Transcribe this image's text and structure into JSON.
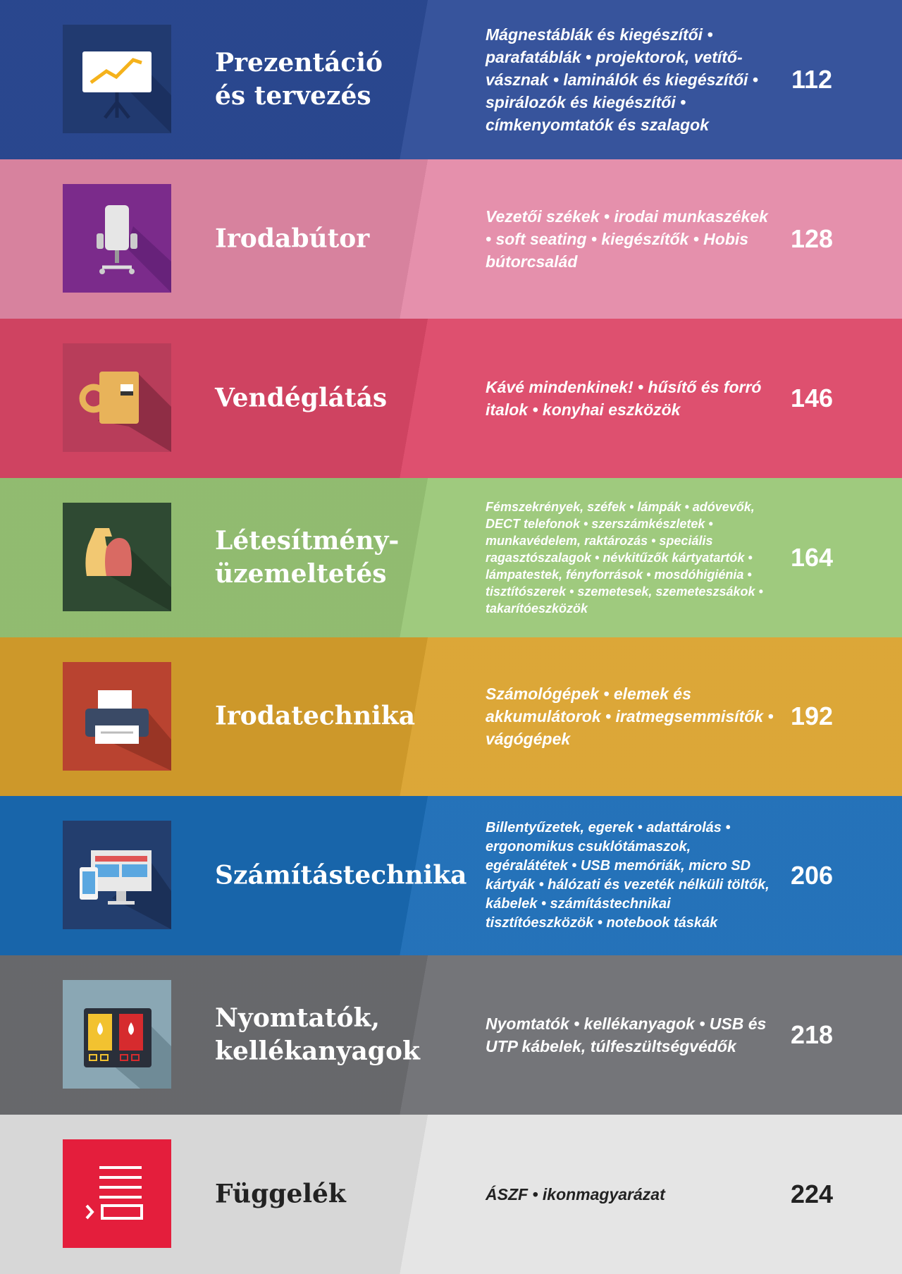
{
  "items": [
    {
      "title": [
        "Prezentáció",
        "és tervezés"
      ],
      "description": "Mágnestáblák és kiegészítői • parafatáblák • projektorok, vetítő­vásznak • laminálók és kiegészítői • spirálozók és kiegészítői • címkenyomtatók és szalagok",
      "page": 112
    },
    {
      "title": [
        "Irodabútor"
      ],
      "description": "Vezetői székek • irodai munkaszékek • soft seating • kiegészítők • Hobis bútorcsalád",
      "page": 128
    },
    {
      "title": [
        "Vendéglátás"
      ],
      "description": "Kávé mindenkinek! • hűsítő és forró italok • konyhai eszközök",
      "page": 146
    },
    {
      "title": [
        "Létesítmény-",
        "üzemeltetés"
      ],
      "description": "Fémszekrények, széfek • lámpák • adóvevők, DECT telefonok • szerszámkészletek • munkavédelem, raktározás • speciális ragasztószalagok • névkitűzők kártyatartók • lámpatestek, fényforrások • mosdóhigiénia • tisztítószerek • szemetesek, szemeteszsákok • takarítóeszközök",
      "page": 164
    },
    {
      "title": [
        "Irodatechnika"
      ],
      "description": "Számológépek • elemek és akkumulátorok • irat­megsemmisítők • vágógépek",
      "page": 192
    },
    {
      "title": [
        "Számítástechnika"
      ],
      "description": "Billentyűzetek, egerek • adattárolás • ergonomikus csuklótámaszok, egéralátétek • USB memóriák, micro SD kártyák • hálózati és vezeték nélküli töltők, kábelek • számítástechnikai tisztítóeszközök • notebook táskák",
      "page": 206
    },
    {
      "title": [
        "Nyomtatók,",
        "kellékanyagok"
      ],
      "description": "Nyomtatók • kellékanyagok • USB és UTP kábelek, túlfeszültségvédők",
      "page": 218
    },
    {
      "title": [
        "Függelék"
      ],
      "description": "ÁSZF • ikonmagyarázat",
      "page": 224
    }
  ]
}
